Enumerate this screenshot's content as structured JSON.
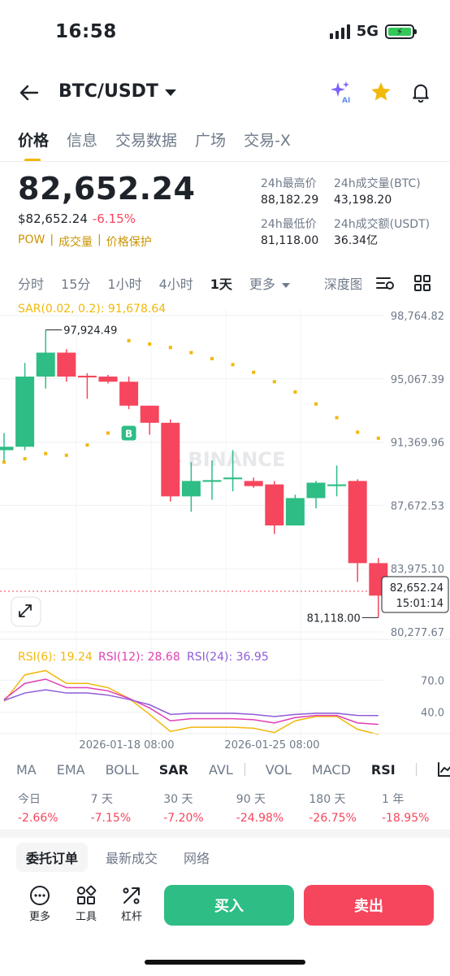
{
  "status_bar": {
    "time": "16:58",
    "network": "5G"
  },
  "header": {
    "pair": "BTC/USDT"
  },
  "tabs": [
    {
      "label": "价格",
      "active": true
    },
    {
      "label": "信息"
    },
    {
      "label": "交易数据"
    },
    {
      "label": "广场"
    },
    {
      "label": "交易-X"
    }
  ],
  "ticker": {
    "price": "82,652.24",
    "price_usd": "$82,652.24",
    "change": "-6.15%",
    "tags": [
      "POW",
      "成交量",
      "价格保护"
    ],
    "stats": [
      {
        "label": "24h最高价",
        "value": "88,182.29"
      },
      {
        "label": "24h成交量(BTC)",
        "value": "43,198.20"
      },
      {
        "label": "24h最低价",
        "value": "81,118.00"
      },
      {
        "label": "24h成交额(USDT)",
        "value": "36.34亿"
      }
    ]
  },
  "timeframes": [
    "分时",
    "15分",
    "1小时",
    "4小时",
    "1天",
    "更多",
    "深度图"
  ],
  "active_timeframe": "1天",
  "chart_data": {
    "type": "candlestick",
    "sar_label": "SAR(0.02, 0.2): 91,678.64",
    "y_ticks": [
      "98,764.82",
      "95,067.39",
      "91,369.96",
      "87,672.53",
      "83,975.10",
      "80,277.67"
    ],
    "y_range": [
      80277.67,
      98764.82
    ],
    "high_marker": "97,924.49",
    "low_marker": "81,118.00",
    "current_price": "82,652.24",
    "countdown": "15:01:14",
    "watermark": "BINANCE",
    "signal_badge": "B",
    "x_labels": [
      "2026-01-18 08:00",
      "2026-01-25 08:00"
    ],
    "candles": [
      {
        "o": 90900,
        "c": 91100,
        "h": 91900,
        "l": 90200
      },
      {
        "o": 91100,
        "c": 95200,
        "h": 96000,
        "l": 90900
      },
      {
        "o": 95200,
        "c": 96600,
        "h": 97924.49,
        "l": 94500
      },
      {
        "o": 96600,
        "c": 95200,
        "h": 96800,
        "l": 94900
      },
      {
        "o": 95250,
        "c": 95150,
        "h": 95400,
        "l": 93900
      },
      {
        "o": 95200,
        "c": 94900,
        "h": 95300,
        "l": 94800
      },
      {
        "o": 94900,
        "c": 93500,
        "h": 95200,
        "l": 93300
      },
      {
        "o": 93500,
        "c": 92500,
        "h": 93500,
        "l": 91800
      },
      {
        "o": 92500,
        "c": 88200,
        "h": 92700,
        "l": 87900
      },
      {
        "o": 88200,
        "c": 89100,
        "h": 90200,
        "l": 87300
      },
      {
        "o": 89050,
        "c": 89150,
        "h": 90300,
        "l": 88000
      },
      {
        "o": 89200,
        "c": 89300,
        "h": 90900,
        "l": 88500
      },
      {
        "o": 89100,
        "c": 88800,
        "h": 89300,
        "l": 88700
      },
      {
        "o": 88900,
        "c": 86500,
        "h": 89100,
        "l": 86000
      },
      {
        "o": 86500,
        "c": 88100,
        "h": 88300,
        "l": 86500
      },
      {
        "o": 88100,
        "c": 89000,
        "h": 89100,
        "l": 87500
      },
      {
        "o": 88800,
        "c": 88900,
        "h": 90000,
        "l": 88200
      },
      {
        "o": 89100,
        "c": 84300,
        "h": 89200,
        "l": 83200
      },
      {
        "o": 84300,
        "c": 82400,
        "h": 84600,
        "l": 81118
      }
    ],
    "sar": [
      90200,
      90400,
      90700,
      90600,
      91200,
      91900,
      97300,
      97100,
      96900,
      96600,
      96250,
      95900,
      95450,
      94900,
      94300,
      93600,
      92800,
      91950,
      91600
    ],
    "rsi": {
      "legend": [
        "RSI(6): 19.24",
        "RSI(12): 28.68",
        "RSI(24): 36.95"
      ],
      "y_ticks": [
        "70.0",
        "40.0"
      ],
      "y_range": [
        20,
        90
      ],
      "colors": [
        "#f0b90b",
        "#e040b5",
        "#8e5cd9"
      ],
      "rsi6": [
        50,
        75,
        79,
        67,
        67,
        63,
        53,
        38,
        22,
        26,
        26,
        26,
        25,
        21,
        32,
        36,
        36,
        24,
        19.24
      ],
      "rsi12": [
        52,
        67,
        71,
        63,
        63,
        60,
        53,
        44,
        32,
        34,
        34,
        34,
        33,
        30,
        35,
        37,
        37,
        30,
        28.68
      ],
      "rsi24": [
        51,
        58,
        61,
        58,
        58,
        56,
        52,
        47,
        38,
        39,
        39,
        39,
        38,
        36,
        38,
        39,
        39,
        37,
        36.95
      ]
    }
  },
  "indicators": [
    "MA",
    "EMA",
    "BOLL",
    "SAR",
    "AVL",
    "VOL",
    "MACD",
    "RSI"
  ],
  "performance": [
    {
      "label": "今日",
      "value": "-2.66%"
    },
    {
      "label": "7 天",
      "value": "-7.15%"
    },
    {
      "label": "30 天",
      "value": "-7.20%"
    },
    {
      "label": "90 天",
      "value": "-24.98%"
    },
    {
      "label": "180 天",
      "value": "-26.75%"
    },
    {
      "label": "1 年",
      "value": "-18.95%"
    }
  ],
  "order_tabs": [
    "委托订单",
    "最新成交",
    "网络"
  ],
  "tools": [
    "更多",
    "工具",
    "杠杆"
  ],
  "buttons": {
    "buy": "买入",
    "sell": "卖出"
  },
  "colors": {
    "up": "#2ebd85",
    "down": "#f6465d",
    "accent": "#f0b90b"
  }
}
